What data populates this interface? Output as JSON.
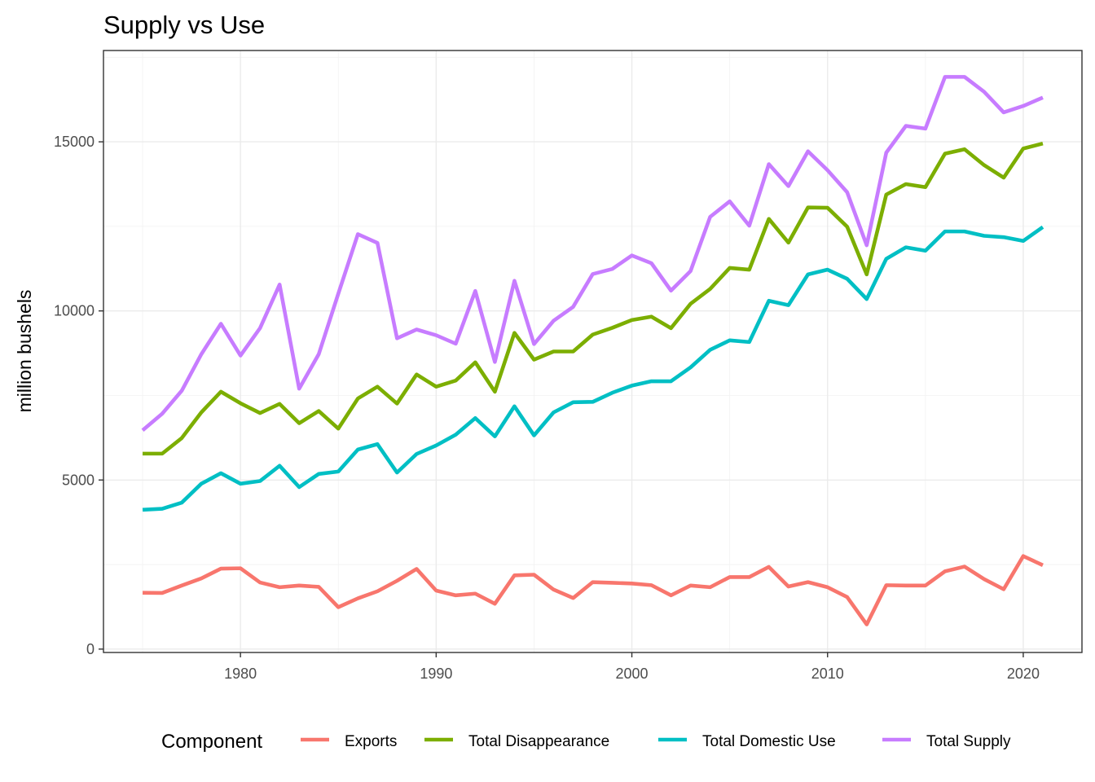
{
  "chart_data": {
    "type": "line",
    "title": "Supply vs Use",
    "xlabel": "",
    "ylabel": "million bushels",
    "xlim": [
      1973,
      2023
    ],
    "ylim": [
      -100,
      17700
    ],
    "x_ticks": [
      1980,
      1990,
      2000,
      2010,
      2020
    ],
    "y_ticks": [
      0,
      5000,
      10000,
      15000
    ],
    "grid": true,
    "legend": {
      "title": "Component",
      "position": "bottom"
    },
    "x": [
      1975,
      1976,
      1977,
      1978,
      1979,
      1980,
      1981,
      1982,
      1983,
      1984,
      1985,
      1986,
      1987,
      1988,
      1989,
      1990,
      1991,
      1992,
      1993,
      1994,
      1995,
      1996,
      1997,
      1998,
      1999,
      2000,
      2001,
      2002,
      2003,
      2004,
      2005,
      2006,
      2007,
      2008,
      2009,
      2010,
      2011,
      2012,
      2013,
      2014,
      2015,
      2016,
      2017,
      2018,
      2019,
      2020,
      2021
    ],
    "series": [
      {
        "name": "Exports",
        "color": "#F8766D",
        "values": [
          1665,
          1660,
          1880,
          2090,
          2380,
          2390,
          1970,
          1830,
          1880,
          1840,
          1240,
          1500,
          1710,
          2020,
          2370,
          1730,
          1590,
          1640,
          1340,
          2180,
          2200,
          1760,
          1510,
          1980,
          1960,
          1940,
          1890,
          1590,
          1880,
          1830,
          2130,
          2130,
          2430,
          1850,
          1980,
          1830,
          1540,
          730,
          1890,
          1880,
          1880,
          2300,
          2440,
          2070,
          1770,
          2750,
          2480
        ]
      },
      {
        "name": "Total Disappearance",
        "color": "#7CAE00",
        "values": [
          5780,
          5780,
          6240,
          7000,
          7610,
          7270,
          6980,
          7250,
          6680,
          7040,
          6520,
          7410,
          7760,
          7260,
          8120,
          7760,
          7940,
          8480,
          7610,
          9350,
          8560,
          8800,
          8800,
          9300,
          9500,
          9730,
          9830,
          9490,
          10210,
          10650,
          11270,
          11220,
          12720,
          12020,
          13060,
          13050,
          12490,
          11080,
          13440,
          13750,
          13660,
          14650,
          14780,
          14310,
          13940,
          14800,
          14950
        ]
      },
      {
        "name": "Total Domestic Use",
        "color": "#00BFC4",
        "values": [
          4120,
          4150,
          4330,
          4890,
          5200,
          4890,
          4970,
          5420,
          4790,
          5180,
          5250,
          5900,
          6060,
          5220,
          5770,
          6020,
          6340,
          6830,
          6290,
          7180,
          6320,
          7000,
          7300,
          7310,
          7580,
          7790,
          7920,
          7920,
          8330,
          8850,
          9130,
          9080,
          10300,
          10170,
          11080,
          11220,
          10950,
          10350,
          11540,
          11880,
          11780,
          12350,
          12350,
          12220,
          12180,
          12070,
          12480
        ]
      },
      {
        "name": "Total Supply",
        "color": "#C77CFF",
        "values": [
          6470,
          6960,
          7640,
          8720,
          9620,
          8680,
          9490,
          10780,
          7700,
          8720,
          10510,
          12270,
          12010,
          9190,
          9450,
          9280,
          9030,
          10590,
          8490,
          10890,
          9020,
          9710,
          10120,
          11090,
          11240,
          11640,
          11410,
          10600,
          11180,
          12780,
          13240,
          12520,
          14340,
          13690,
          14720,
          14160,
          13510,
          11940,
          14680,
          15470,
          15390,
          16920,
          16920,
          16480,
          15870,
          16060,
          16310
        ]
      }
    ]
  }
}
